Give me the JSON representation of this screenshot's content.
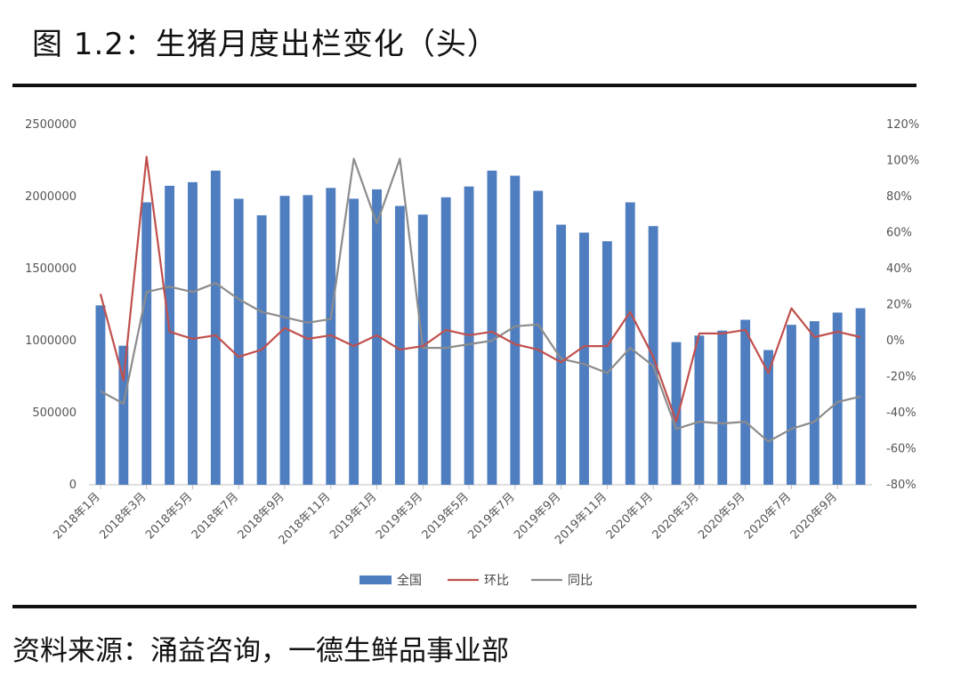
{
  "title": "图 1.2：生猪月度出栏变化（头）",
  "source": "资料来源：涌益咨询，一德生鲜品事业部",
  "colors": {
    "bar": "#4f7ec0",
    "mom": "#c0504d",
    "yoy": "#8c8c8c",
    "axis": "#bfbfbf"
  },
  "chart_data": {
    "type": "bar",
    "categories": [
      "2018年1月",
      "2018年2月",
      "2018年3月",
      "2018年4月",
      "2018年5月",
      "2018年6月",
      "2018年7月",
      "2018年8月",
      "2018年9月",
      "2018年10月",
      "2018年11月",
      "2018年12月",
      "2019年1月",
      "2019年2月",
      "2019年3月",
      "2019年4月",
      "2019年5月",
      "2019年6月",
      "2019年7月",
      "2019年8月",
      "2019年9月",
      "2019年10月",
      "2019年11月",
      "2019年12月",
      "2020年1月",
      "2020年2月",
      "2020年3月",
      "2020年4月",
      "2020年5月",
      "2020年6月",
      "2020年7月",
      "2020年8月",
      "2020年9月",
      "2020年10月"
    ],
    "x_tick_labels": [
      "2018年1月",
      "2018年3月",
      "2018年5月",
      "2018年7月",
      "2018年9月",
      "2018年11月",
      "2019年1月",
      "2019年3月",
      "2019年5月",
      "2019年7月",
      "2019年9月",
      "2019年11月",
      "2020年1月",
      "2020年3月",
      "2020年5月",
      "2020年7月",
      "2020年9月"
    ],
    "series": [
      {
        "name": "全国",
        "type": "bar",
        "axis": "left",
        "values": [
          1245000,
          965000,
          1960000,
          2075000,
          2100000,
          2180000,
          1985000,
          1870000,
          2005000,
          2010000,
          2060000,
          1985000,
          2050000,
          1935000,
          1875000,
          1995000,
          2070000,
          2180000,
          2145000,
          2040000,
          1805000,
          1750000,
          1690000,
          1960000,
          1795000,
          990000,
          1035000,
          1070000,
          1145000,
          935000,
          1110000,
          1135000,
          1195000,
          1225000
        ]
      },
      {
        "name": "环比",
        "type": "line",
        "axis": "right",
        "values": [
          26,
          -22,
          102,
          5,
          1,
          3,
          -9,
          -5,
          7,
          1,
          3,
          -3,
          3,
          -5,
          -3,
          6,
          3,
          5,
          -2,
          -5,
          -12,
          -3,
          -3,
          16,
          -9,
          -45,
          4,
          4,
          6,
          -18,
          18,
          2,
          5,
          2
        ]
      },
      {
        "name": "同比",
        "type": "line",
        "axis": "right",
        "values": [
          -28,
          -35,
          27,
          30,
          27,
          32,
          23,
          16,
          13,
          10,
          12,
          101,
          65,
          101,
          -4,
          -4,
          -2,
          0,
          8,
          9,
          -10,
          -13,
          -18,
          -4,
          -14,
          -49,
          -45,
          -46,
          -45,
          -56,
          -49,
          -45,
          -34,
          -31
        ]
      }
    ],
    "y_left": {
      "min": 0,
      "max": 2500000,
      "ticks": [
        0,
        500000,
        1000000,
        1500000,
        2000000,
        2500000
      ]
    },
    "y_right": {
      "min": -80,
      "max": 120,
      "ticks": [
        -80,
        -60,
        -40,
        -20,
        0,
        20,
        40,
        60,
        80,
        100,
        120
      ],
      "unit": "%"
    },
    "grid": false,
    "legend_position": "bottom"
  }
}
